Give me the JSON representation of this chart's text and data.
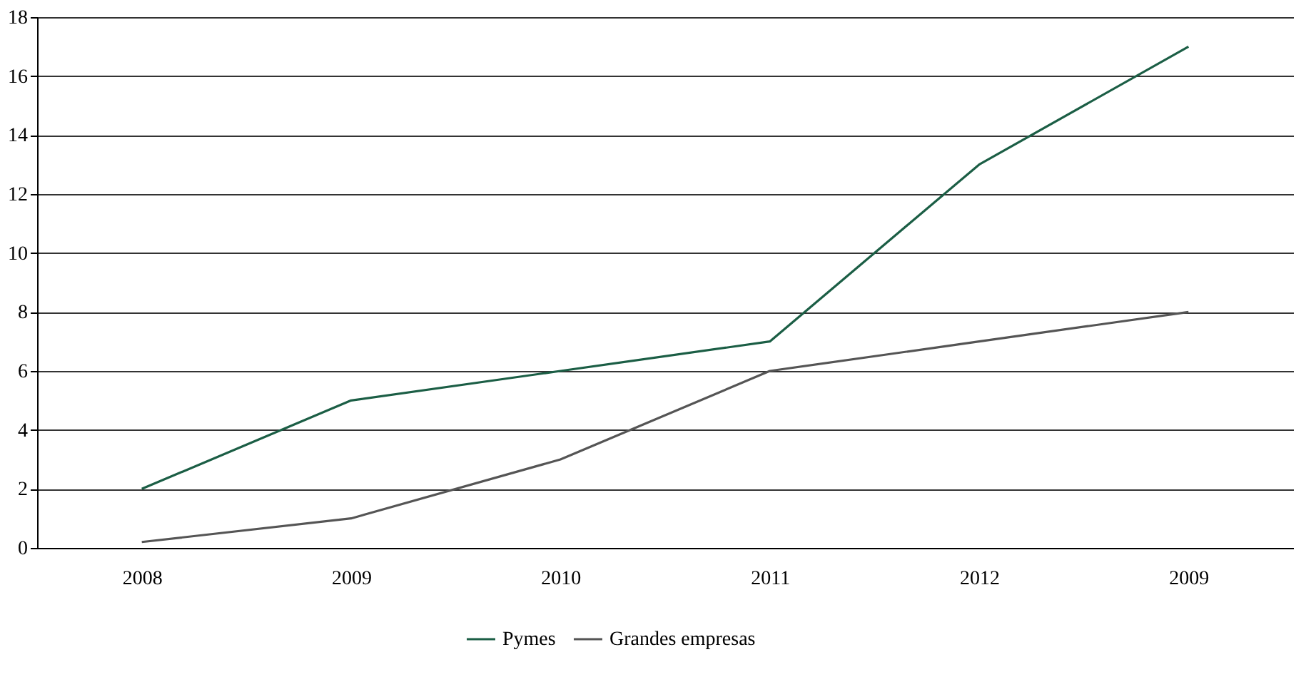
{
  "chart_data": {
    "type": "line",
    "categories": [
      "2008",
      "2009",
      "2010",
      "2011",
      "2012",
      "2009"
    ],
    "series": [
      {
        "name": "Pymes",
        "color": "#1b5e45",
        "values": [
          2,
          5,
          6,
          7,
          13,
          17
        ]
      },
      {
        "name": "Grandes empresas",
        "color": "#555555",
        "values": [
          0.2,
          1,
          3,
          6,
          7,
          8
        ]
      }
    ],
    "ylim": [
      0,
      18
    ],
    "yticks": [
      0,
      2,
      4,
      6,
      8,
      10,
      12,
      14,
      16,
      18
    ],
    "grid": "y",
    "legend": "bottom",
    "marker": "none",
    "line_style": "solid"
  }
}
